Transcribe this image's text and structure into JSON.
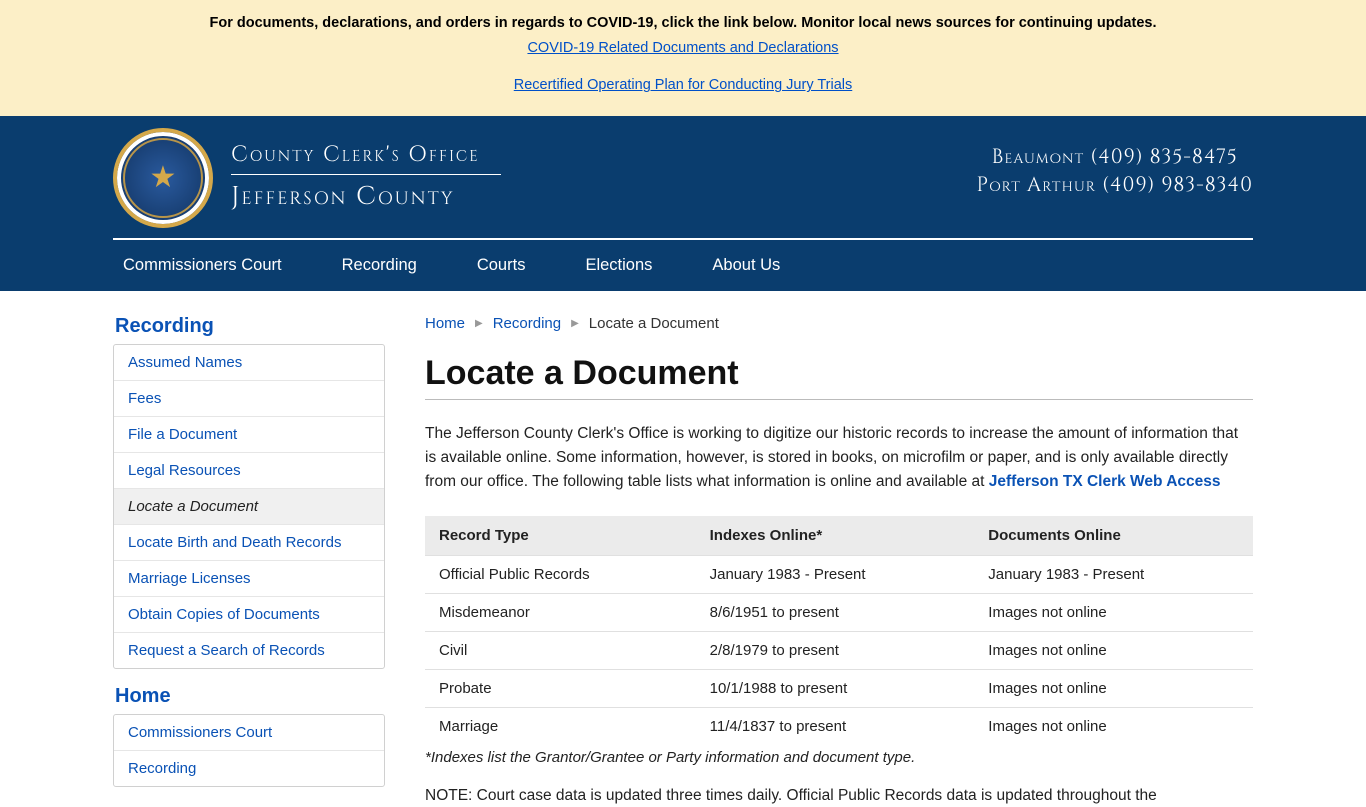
{
  "banner": {
    "text": "For documents, declarations, and orders in regards to COVID-19, click the link below. Monitor local news sources for continuing updates.",
    "link1": "COVID-19 Related Documents and Declarations",
    "link2": "Recertified Operating Plan for Conducting Jury Trials"
  },
  "header": {
    "title_line1": "County Clerk's Office",
    "title_line2": "Jefferson County",
    "contact_line1": "Beaumont (409) 835-8475",
    "contact_line2": "Port Arthur (409) 983-8340"
  },
  "nav": {
    "items": [
      "Commissioners Court",
      "Recording",
      "Courts",
      "Elections",
      "About Us"
    ]
  },
  "sidebar": {
    "sections": [
      {
        "title": "Recording",
        "items": [
          {
            "label": "Assumed Names",
            "active": false
          },
          {
            "label": "Fees",
            "active": false
          },
          {
            "label": "File a Document",
            "active": false
          },
          {
            "label": "Legal Resources",
            "active": false
          },
          {
            "label": "Locate a Document",
            "active": true
          },
          {
            "label": "Locate Birth and Death Records",
            "active": false
          },
          {
            "label": "Marriage Licenses",
            "active": false
          },
          {
            "label": "Obtain Copies of Documents",
            "active": false
          },
          {
            "label": "Request a Search of Records",
            "active": false
          }
        ]
      },
      {
        "title": "Home",
        "items": [
          {
            "label": "Commissioners Court",
            "active": false
          },
          {
            "label": "Recording",
            "active": false
          }
        ]
      }
    ]
  },
  "breadcrumb": {
    "items": [
      {
        "label": "Home",
        "link": true
      },
      {
        "label": "Recording",
        "link": true
      },
      {
        "label": "Locate a Document",
        "link": false
      }
    ]
  },
  "page": {
    "title": "Locate a Document",
    "intro_text": "The Jefferson County Clerk's Office is working to digitize our historic records to increase the amount of information that is available online. Some information, however, is stored in books, on microfilm or paper, and is only available directly from our office. The following table lists what information is online and available at ",
    "intro_link": "Jefferson TX Clerk Web Access"
  },
  "table": {
    "headers": [
      "Record Type",
      "Indexes Online*",
      "Documents Online"
    ],
    "rows": [
      [
        "Official Public Records",
        "January 1983 - Present",
        "January 1983 - Present"
      ],
      [
        "Misdemeanor",
        "8/6/1951 to present",
        "Images not online"
      ],
      [
        "Civil",
        "2/8/1979 to present",
        "Images not online"
      ],
      [
        "Probate",
        "10/1/1988 to present",
        "Images not online"
      ],
      [
        "Marriage",
        "11/4/1837 to present",
        "Images not online"
      ]
    ],
    "footnote": "*Indexes list the Grantor/Grantee or Party information and document type.",
    "note": "NOTE: Court case data is updated three times daily. Official Public Records data is updated throughout the"
  }
}
